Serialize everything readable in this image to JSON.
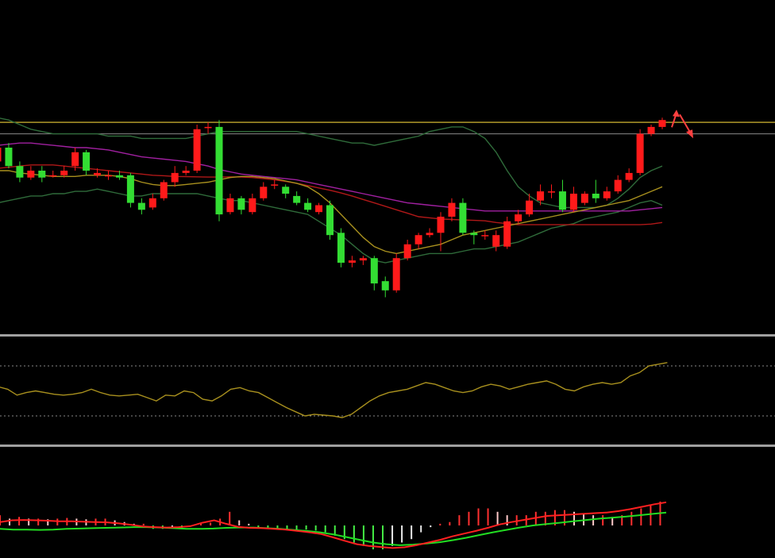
{
  "colors": {
    "background": "#000000",
    "bull": "#ff1a1a",
    "bear": "#33dd33",
    "resistance": "#b09a2a",
    "level": "#8a8a8a",
    "boll": "#2f6b3a",
    "ma_purple": "#a020a0",
    "ma_red": "#b01818",
    "ma_gold": "#a8901e",
    "rsi": "#a8901e",
    "macd_fast": "#ff2020",
    "macd_slow": "#22dd22",
    "hist_up": "#ff3030",
    "hist_up_weak": "#ffc8c8",
    "hist_down": "#44ee44",
    "hist_down_weak": "#e8e8e8",
    "arrow": "#ff4040",
    "separator": "#a0a0a0"
  },
  "chart_data": [
    {
      "type": "candlestick",
      "panel": "price",
      "ylim": [
        0,
        100
      ],
      "resistance_level": 91,
      "reference_level": 86,
      "candles": [
        [
          74,
          80,
          82,
          72
        ],
        [
          80,
          72,
          82,
          71
        ],
        [
          72,
          67,
          74,
          65
        ],
        [
          67,
          70,
          72,
          66
        ],
        [
          70,
          67,
          72,
          65
        ],
        [
          68,
          68,
          70,
          67
        ],
        [
          68,
          70,
          72,
          67
        ],
        [
          72,
          78,
          80,
          70
        ],
        [
          78,
          70,
          79,
          68
        ],
        [
          68,
          69,
          71,
          67
        ],
        [
          68,
          68,
          70,
          66
        ],
        [
          68,
          67,
          70,
          66
        ],
        [
          68,
          56,
          69,
          54
        ],
        [
          56,
          53,
          58,
          51
        ],
        [
          54,
          58,
          60,
          53
        ],
        [
          58,
          65,
          66,
          57
        ],
        [
          65,
          69,
          72,
          63
        ],
        [
          69,
          70,
          72,
          68
        ],
        [
          70,
          88,
          90,
          69
        ],
        [
          89,
          89,
          91,
          86
        ],
        [
          89,
          51,
          92,
          48
        ],
        [
          52,
          58,
          60,
          51
        ],
        [
          58,
          53,
          59,
          51
        ],
        [
          52,
          58,
          60,
          51
        ],
        [
          58,
          63,
          65,
          57
        ],
        [
          64,
          64,
          66,
          62
        ],
        [
          63,
          60,
          64,
          58
        ],
        [
          59,
          56,
          61,
          55
        ],
        [
          56,
          53,
          58,
          52
        ],
        [
          52,
          55,
          56,
          51
        ],
        [
          55,
          42,
          57,
          40
        ],
        [
          43,
          30,
          45,
          28
        ],
        [
          30,
          31,
          33,
          28
        ],
        [
          31,
          32,
          33,
          29
        ],
        [
          32,
          21,
          33,
          18
        ],
        [
          22,
          18,
          24,
          15
        ],
        [
          18,
          32,
          34,
          17
        ],
        [
          32,
          38,
          40,
          31
        ],
        [
          38,
          42,
          43,
          36
        ],
        [
          42,
          43,
          45,
          41
        ],
        [
          43,
          50,
          52,
          35
        ],
        [
          50,
          56,
          58,
          48
        ],
        [
          56,
          43,
          58,
          42
        ],
        [
          43,
          42,
          44,
          38
        ],
        [
          42,
          42,
          44,
          40
        ],
        [
          37,
          42,
          44,
          35
        ],
        [
          37,
          48,
          50,
          36
        ],
        [
          48,
          51,
          53,
          47
        ],
        [
          51,
          57,
          60,
          50
        ],
        [
          57,
          61,
          64,
          55
        ],
        [
          61,
          61,
          64,
          58
        ],
        [
          61,
          53,
          66,
          52
        ],
        [
          53,
          60,
          63,
          52
        ],
        [
          56,
          60,
          61,
          55
        ],
        [
          60,
          58,
          66,
          56
        ],
        [
          58,
          61,
          63,
          57
        ],
        [
          61,
          66,
          68,
          60
        ],
        [
          66,
          69,
          71,
          65
        ],
        [
          69,
          86,
          88,
          68
        ],
        [
          86,
          89,
          90,
          85
        ],
        [
          89,
          92,
          93,
          88
        ]
      ],
      "overlays": [
        {
          "role": "boll_upper",
          "values": [
            93,
            92,
            90,
            88,
            87,
            86,
            86,
            86,
            86,
            86,
            85,
            85,
            85,
            84,
            84,
            84,
            84,
            84,
            85,
            86,
            87,
            87,
            87,
            87,
            87,
            87,
            87,
            87,
            86,
            85,
            84,
            83,
            82,
            82,
            81,
            82,
            83,
            84,
            85,
            87,
            88,
            89,
            89,
            87,
            84,
            78,
            70,
            63,
            59,
            56,
            55,
            54,
            54,
            54,
            54,
            55,
            58,
            62,
            67,
            70,
            72
          ]
        },
        {
          "role": "boll_lower",
          "values": [
            56,
            57,
            58,
            59,
            59,
            60,
            60,
            61,
            61,
            62,
            61,
            60,
            59,
            59,
            60,
            60,
            60,
            60,
            60,
            59,
            58,
            57,
            57,
            56,
            55,
            54,
            53,
            52,
            51,
            48,
            45,
            42,
            38,
            34,
            31,
            30,
            31,
            32,
            33,
            34,
            34,
            34,
            35,
            36,
            36,
            37,
            38,
            39,
            41,
            43,
            45,
            46,
            47,
            49,
            50,
            51,
            52,
            54,
            56,
            57,
            55
          ]
        },
        {
          "role": "ma_purple",
          "values": [
            81,
            81.5,
            82,
            82,
            81.5,
            81,
            80.5,
            80,
            80,
            79.5,
            79,
            78,
            77,
            76,
            75.5,
            75,
            74.5,
            74,
            73,
            72,
            70.5,
            69.5,
            68.5,
            68,
            67.5,
            67,
            66.5,
            66,
            65,
            64,
            63,
            62,
            61,
            60,
            59,
            58,
            57,
            56,
            55.5,
            55,
            54.5,
            54,
            53.5,
            53,
            52.5,
            52.5,
            52.5,
            52.5,
            52.5,
            52.5,
            52.5,
            52.5,
            52.5,
            52.5,
            52.5,
            52.5,
            52.5,
            52.5,
            53,
            53.5,
            54
          ]
        },
        {
          "role": "ma_red",
          "values": [
            71,
            71.5,
            72,
            72.5,
            72.5,
            72.5,
            72,
            71.5,
            71,
            70.5,
            70,
            69.5,
            69,
            68.5,
            68,
            67.8,
            67.5,
            67.4,
            67.3,
            67.2,
            67.2,
            67.3,
            67.2,
            67,
            66.5,
            66,
            65.3,
            64.5,
            63.5,
            62.5,
            61.5,
            60.3,
            59,
            57.5,
            56,
            54.5,
            53,
            51.5,
            50,
            49.5,
            49,
            48.8,
            48.6,
            48.4,
            48.2,
            47.5,
            47,
            46.5,
            46.5,
            46.5,
            46.5,
            46.5,
            46.5,
            46.5,
            46.5,
            46.5,
            46.5,
            46.5,
            46.5,
            46.8,
            47.5
          ]
        },
        {
          "role": "ma_gold",
          "values": [
            70,
            70,
            69,
            68.5,
            68,
            67.5,
            67.5,
            67.5,
            68,
            68,
            68,
            67.5,
            66.5,
            65,
            64,
            63.5,
            63.5,
            64,
            64.5,
            65,
            66,
            67,
            67.5,
            67.5,
            67,
            66.5,
            65.5,
            64.5,
            63,
            60,
            56,
            51,
            46,
            41,
            37,
            35,
            34,
            35,
            36,
            37,
            38,
            40,
            42,
            43,
            44,
            45,
            46,
            47,
            48,
            49,
            50,
            51,
            52,
            53,
            54,
            55,
            56,
            57,
            59,
            61,
            63
          ]
        }
      ],
      "arrows": [
        "up",
        "down"
      ]
    },
    {
      "type": "line",
      "panel": "oscillator",
      "ylim": [
        0,
        100
      ],
      "levels": [
        80,
        20
      ],
      "series": [
        {
          "values": [
            55,
            52,
            45,
            48,
            50,
            48,
            46,
            45,
            46,
            48,
            52,
            48,
            45,
            44,
            45,
            46,
            42,
            38,
            45,
            44,
            50,
            48,
            40,
            38,
            44,
            52,
            54,
            50,
            48,
            42,
            36,
            30,
            25,
            20,
            22,
            21,
            20,
            18,
            22,
            30,
            38,
            44,
            48,
            50,
            52,
            56,
            60,
            58,
            54,
            50,
            48,
            50,
            55,
            58,
            56,
            52,
            55,
            58,
            60,
            62,
            58,
            52,
            50,
            55,
            58,
            60,
            58,
            60,
            68,
            72,
            80,
            82,
            84
          ]
        }
      ]
    },
    {
      "type": "bar",
      "panel": "macd",
      "ylim": [
        -10,
        10
      ],
      "histogram": [
        3,
        2,
        2.5,
        2,
        2,
        1.8,
        2,
        2.2,
        2,
        1.8,
        2,
        2,
        1.5,
        1,
        0.5,
        0.5,
        -1,
        -1,
        -0.8,
        -0.8,
        0,
        0.5,
        0.8,
        2,
        4,
        1.5,
        0.5,
        -0.5,
        -0.8,
        -1,
        -1,
        -1.2,
        -1.2,
        -1.5,
        -2,
        -3,
        -4,
        -5,
        -6,
        -7,
        -7,
        -6,
        -5,
        -4,
        -2,
        -0.5,
        0.5,
        1,
        3,
        4,
        5,
        5,
        4,
        3,
        3,
        3,
        4,
        4,
        4.5,
        4.5,
        4,
        3.5,
        3,
        3,
        2.5,
        3,
        4,
        5,
        6,
        7
      ],
      "series": [
        {
          "values": [
            1,
            1.5,
            1.6,
            1.5,
            1.4,
            1.2,
            1.2,
            1.1,
            1,
            0.9,
            0.6,
            0.2,
            -0.3,
            -0.5,
            -0.6,
            -0.5,
            -0.2,
            0.8,
            1.5,
            0.5,
            -0.4,
            -0.7,
            -0.8,
            -1,
            -1.2,
            -1.6,
            -2,
            -2.5,
            -3.5,
            -4.5,
            -5.5,
            -6,
            -6.3,
            -6.6,
            -6.4,
            -5.8,
            -5,
            -4.2,
            -3.2,
            -2.4,
            -1.6,
            -0.7,
            0.3,
            1,
            1.6,
            2.2,
            2.8,
            3,
            3.2,
            3.4,
            3.6,
            3.8,
            4.2,
            4.8,
            5.5,
            6.2,
            6.8
          ]
        },
        {
          "values": [
            -1,
            -1.2,
            -1.2,
            -1.3,
            -1.2,
            -1,
            -0.9,
            -0.8,
            -0.7,
            -0.6,
            -0.5,
            -0.5,
            -0.6,
            -0.8,
            -1,
            -1,
            -0.9,
            -0.7,
            -0.6,
            -0.6,
            -0.8,
            -1,
            -1.3,
            -1.6,
            -2,
            -2.6,
            -3.4,
            -4.2,
            -5,
            -5.5,
            -5.8,
            -5.6,
            -5.3,
            -4.9,
            -4.3,
            -3.6,
            -2.8,
            -2,
            -1.3,
            -0.6,
            0,
            0.4,
            0.8,
            1.2,
            1.6,
            2,
            2.3,
            2.6,
            3,
            3.4,
            3.8
          ]
        }
      ]
    }
  ]
}
